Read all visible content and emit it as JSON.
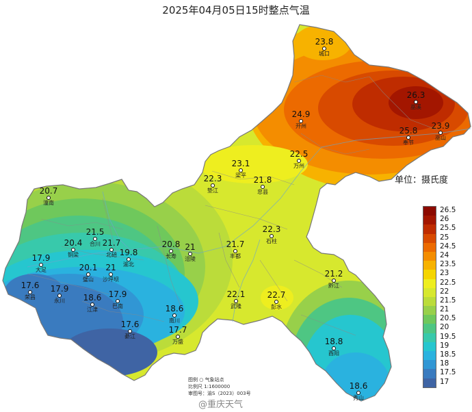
{
  "title": "2025年04月05日15时整点气温",
  "legend": {
    "title": "单位：摄氏度",
    "items": [
      {
        "label": "26.5",
        "color": "#8c0a00"
      },
      {
        "label": "26",
        "color": "#a31600"
      },
      {
        "label": "25.5",
        "color": "#bf2c00"
      },
      {
        "label": "25",
        "color": "#d84a00"
      },
      {
        "label": "24.5",
        "color": "#ec6a00"
      },
      {
        "label": "24",
        "color": "#f48d00"
      },
      {
        "label": "23.5",
        "color": "#f7b200"
      },
      {
        "label": "23",
        "color": "#f5d500"
      },
      {
        "label": "22.5",
        "color": "#eeee1f"
      },
      {
        "label": "22",
        "color": "#d7e82e"
      },
      {
        "label": "21.5",
        "color": "#bbdc3a"
      },
      {
        "label": "21",
        "color": "#98d04a"
      },
      {
        "label": "20.5",
        "color": "#6fc85c"
      },
      {
        "label": "20",
        "color": "#4ec683"
      },
      {
        "label": "19.5",
        "color": "#38c9ab"
      },
      {
        "label": "19",
        "color": "#26c6cf"
      },
      {
        "label": "18.5",
        "color": "#2ab2df"
      },
      {
        "label": "18",
        "color": "#3196d4"
      },
      {
        "label": "17.5",
        "color": "#3a7bbf"
      },
      {
        "label": "17",
        "color": "#3f64a4"
      }
    ]
  },
  "stations": [
    {
      "name": "城口",
      "value": "23.8"
    },
    {
      "name": "巫溪",
      "value": "26.3"
    },
    {
      "name": "开州",
      "value": "24.9"
    },
    {
      "name": "奉节",
      "value": "25.8"
    },
    {
      "name": "巫山",
      "value": "23.9"
    },
    {
      "name": "万州",
      "value": "22.5"
    },
    {
      "name": "梁平",
      "value": "23.1"
    },
    {
      "name": "垫江",
      "value": "22.3"
    },
    {
      "name": "忠县",
      "value": "21.8"
    },
    {
      "name": "石柱",
      "value": "22.3"
    },
    {
      "name": "潼南",
      "value": "20.7"
    },
    {
      "name": "合川",
      "value": "21.5"
    },
    {
      "name": "铜梁",
      "value": "20.4"
    },
    {
      "name": "北碚",
      "value": "21.7"
    },
    {
      "name": "渝北",
      "value": "19.8"
    },
    {
      "name": "长寿",
      "value": "20.8"
    },
    {
      "name": "涪陵",
      "value": "21"
    },
    {
      "name": "丰都",
      "value": "21.7"
    },
    {
      "name": "大足",
      "value": "17.9"
    },
    {
      "name": "璧山",
      "value": "20.1"
    },
    {
      "name": "沙坪坝",
      "value": "21"
    },
    {
      "name": "荣昌",
      "value": "17.6"
    },
    {
      "name": "永川",
      "value": "17.9"
    },
    {
      "name": "江津",
      "value": "18.6"
    },
    {
      "name": "巴南",
      "value": "17.9"
    },
    {
      "name": "南川",
      "value": "18.6"
    },
    {
      "name": "綦江",
      "value": "17.6"
    },
    {
      "name": "万盛",
      "value": "17.7"
    },
    {
      "name": "武隆",
      "value": "22.1"
    },
    {
      "name": "彭水",
      "value": "22.7"
    },
    {
      "name": "黔江",
      "value": "21.2"
    },
    {
      "name": "酉阳",
      "value": "18.8"
    },
    {
      "name": "秀山",
      "value": "18.6"
    }
  ],
  "map_notes": {
    "line1": "图例   ○   气象站点",
    "line2": "比例尺   1:1600000",
    "line3": "审图号：渝S（2023）003号"
  },
  "watermark": "@重庆天气"
}
